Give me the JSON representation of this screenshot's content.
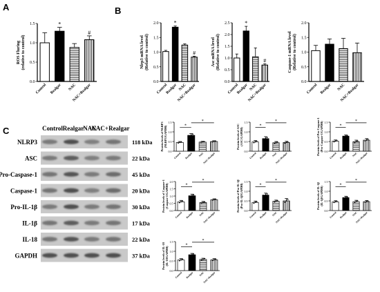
{
  "panels": {
    "a": "A",
    "b": "B",
    "c": "C"
  },
  "patterns": [
    "open",
    "solid",
    "hstripe",
    "vstripe"
  ],
  "colors": {
    "ink": "#000000",
    "blot_bg": "#c9c9c9",
    "blot_band": "#3a3a3a"
  },
  "chart_data": [
    {
      "id": "ros",
      "type": "bar",
      "ylabel": "ROS Fluring\n(relative to control)",
      "categories": [
        "Control",
        "Realgar",
        "NAC",
        "NAC+Realgar"
      ],
      "values": [
        1.0,
        1.3,
        0.88,
        1.08
      ],
      "errors": [
        0.26,
        0.1,
        0.1,
        0.1
      ],
      "ylim": [
        0,
        1.5
      ],
      "yticks": [
        "0.0",
        "0.5",
        "1.0",
        "1.5"
      ],
      "sig": [
        "",
        "*",
        "",
        "#"
      ]
    },
    {
      "id": "nlrp3_mrna",
      "type": "bar",
      "ylabel": "Nlrp3 mRNA level\n(Relative to control)",
      "categories": [
        "Control",
        "Realgar",
        "NAC",
        "NAC+Realgar"
      ],
      "values": [
        1.02,
        1.85,
        1.24,
        0.83
      ],
      "errors": [
        0.04,
        0.04,
        0.04,
        0.03
      ],
      "ylim": [
        0,
        2.0
      ],
      "yticks": [
        "0.0",
        "0.5",
        "1.0",
        "1.5",
        "2.0"
      ],
      "sig": [
        "",
        "*",
        "",
        "#"
      ]
    },
    {
      "id": "asc_mrna",
      "type": "bar",
      "ylabel": "Asc mRNA level\n(Relative to control)",
      "categories": [
        "Control",
        "Realgar",
        "NAC",
        "NAC+Realgar"
      ],
      "values": [
        1.0,
        2.15,
        1.05,
        0.7
      ],
      "errors": [
        0.17,
        0.2,
        0.38,
        0.05
      ],
      "ylim": [
        0,
        2.5
      ],
      "yticks": [
        "0.0",
        "0.5",
        "1.0",
        "1.5",
        "2.0",
        "2.5"
      ],
      "sig": [
        "",
        "*",
        "",
        "#"
      ]
    },
    {
      "id": "casp1_mrna",
      "type": "bar",
      "ylabel": "Caspase-1 mRNA level\n(Relative to control)",
      "categories": [
        "Control",
        "Realgar",
        "NAC",
        "NAC+Realgar"
      ],
      "values": [
        1.05,
        1.27,
        1.12,
        0.98
      ],
      "errors": [
        0.18,
        0.18,
        0.35,
        0.33
      ],
      "ylim": [
        0,
        2.0
      ],
      "yticks": [
        "0.0",
        "0.5",
        "1.0",
        "1.5",
        "2.0"
      ],
      "sig": [
        "",
        "",
        "",
        ""
      ]
    },
    {
      "id": "wb_nlrp3",
      "type": "bar",
      "ylabel": "Protein levels of NLRP3\n(NLRP3/GAPDH)",
      "categories": [
        "Control",
        "Realgar",
        "NAC",
        "NAC+Realgar"
      ],
      "values": [
        0.45,
        0.82,
        0.47,
        0.5
      ],
      "errors": [
        0.05,
        0.09,
        0.04,
        0.04
      ],
      "ylim": [
        0,
        1.5
      ],
      "yticks": [
        "0.0",
        "0.5",
        "1.0",
        "1.5"
      ],
      "sig": [
        "*",
        "*"
      ]
    },
    {
      "id": "wb_asc",
      "type": "bar",
      "ylabel": "Protein levels of ASC\n(ASC/GAPDH)",
      "categories": [
        "Control",
        "Realgar",
        "NAC",
        "NAC+Realgar"
      ],
      "values": [
        0.48,
        0.65,
        0.44,
        0.45
      ],
      "errors": [
        0.07,
        0.1,
        0.06,
        0.06
      ],
      "ylim": [
        0,
        1.5
      ],
      "yticks": [
        "0.0",
        "0.5",
        "1.0",
        "1.5"
      ],
      "sig": [
        "*",
        "*"
      ]
    },
    {
      "id": "wb_procasp1",
      "type": "bar",
      "ylabel": "Protein levels of Pro-Caspase-1\n(Pro-Caspase-1/GAPDH)",
      "categories": [
        "Control",
        "Realgar",
        "NAC",
        "NAC+Realgar"
      ],
      "values": [
        0.52,
        0.78,
        0.49,
        0.57
      ],
      "errors": [
        0.06,
        0.06,
        0.08,
        0.08
      ],
      "ylim": [
        0,
        1.5
      ],
      "yticks": [
        "0.0",
        "0.5",
        "1.0",
        "1.5"
      ],
      "sig": [
        "*",
        "*"
      ]
    },
    {
      "id": "wb_casp1",
      "type": "bar",
      "ylabel": "Protein levels of Caspase-1\n(Caspase-1/GAPDH)",
      "categories": [
        "Control",
        "Realgar",
        "NAC",
        "NAC+Realgar"
      ],
      "values": [
        0.6,
        1.02,
        0.55,
        0.75
      ],
      "errors": [
        0.1,
        0.11,
        0.08,
        0.06
      ],
      "ylim": [
        0,
        2.0
      ],
      "yticks": [
        "0.0",
        "0.5",
        "1.0",
        "1.5",
        "2.0"
      ],
      "sig": [
        "*",
        "*"
      ]
    },
    {
      "id": "wb_proil1b",
      "type": "bar",
      "ylabel": "Protein levels of Pro-IL-1β\n(Pro-IL-1β/GAPDH)",
      "categories": [
        "Control",
        "Realgar",
        "NAC",
        "NAC+Realgar"
      ],
      "values": [
        0.42,
        0.8,
        0.48,
        0.5
      ],
      "errors": [
        0.07,
        0.1,
        0.06,
        0.12
      ],
      "ylim": [
        0,
        1.5
      ],
      "yticks": [
        "0.0",
        "0.5",
        "1.0",
        "1.5"
      ],
      "sig": [
        "*",
        "*"
      ]
    },
    {
      "id": "wb_il1b",
      "type": "bar",
      "ylabel": "Protein levels of IL-1β\n(IL-1β/GAPDH)",
      "categories": [
        "Control",
        "Realgar",
        "NAC",
        "NAC+Realgar"
      ],
      "values": [
        0.45,
        0.67,
        0.46,
        0.46
      ],
      "errors": [
        0.06,
        0.07,
        0.07,
        0.06
      ],
      "ylim": [
        0,
        1.5
      ],
      "yticks": [
        "0.0",
        "0.5",
        "1.0",
        "1.5"
      ],
      "sig": [
        "*",
        "*"
      ]
    },
    {
      "id": "wb_il18",
      "type": "bar",
      "ylabel": "Protein levels of IL-18\n(IL-18/GAPDH)",
      "categories": [
        "Control",
        "Realgar",
        "NAC",
        "NAC+Realgar"
      ],
      "values": [
        0.55,
        0.82,
        0.58,
        0.56
      ],
      "errors": [
        0.07,
        0.07,
        0.06,
        0.06
      ],
      "ylim": [
        0,
        1.5
      ],
      "yticks": [
        "0.0",
        "0.5",
        "1.0",
        "1.5"
      ],
      "sig": [
        "*",
        "*"
      ]
    }
  ],
  "blot": {
    "headers": [
      "Control",
      "Realgar",
      "NAC",
      "NAC+Realgar"
    ],
    "rows": [
      {
        "protein": "NLRP3",
        "kda": "118 kDa",
        "bands": [
          0.55,
          0.85,
          0.5,
          0.6
        ]
      },
      {
        "protein": "ASC",
        "kda": "22 kDa",
        "bands": [
          0.55,
          0.75,
          0.5,
          0.55
        ]
      },
      {
        "protein": "Pro-Caspase-1",
        "kda": "45 kDa",
        "bands": [
          0.6,
          0.8,
          0.55,
          0.65
        ]
      },
      {
        "protein": "Caspase-1",
        "kda": "20 kDa",
        "bands": [
          0.6,
          0.85,
          0.5,
          0.65
        ]
      },
      {
        "protein": "Pro-IL-1β",
        "kda": "30 kDa",
        "bands": [
          0.55,
          0.85,
          0.55,
          0.6
        ]
      },
      {
        "protein": "IL-1β",
        "kda": "17 kDa",
        "bands": [
          0.6,
          0.75,
          0.55,
          0.6
        ]
      },
      {
        "protein": "IL-18",
        "kda": "22 kDa",
        "bands": [
          0.6,
          0.8,
          0.55,
          0.6
        ]
      },
      {
        "protein": "GAPDH",
        "kda": "37 kDa",
        "bands": [
          0.85,
          0.85,
          0.85,
          0.85
        ]
      }
    ]
  }
}
